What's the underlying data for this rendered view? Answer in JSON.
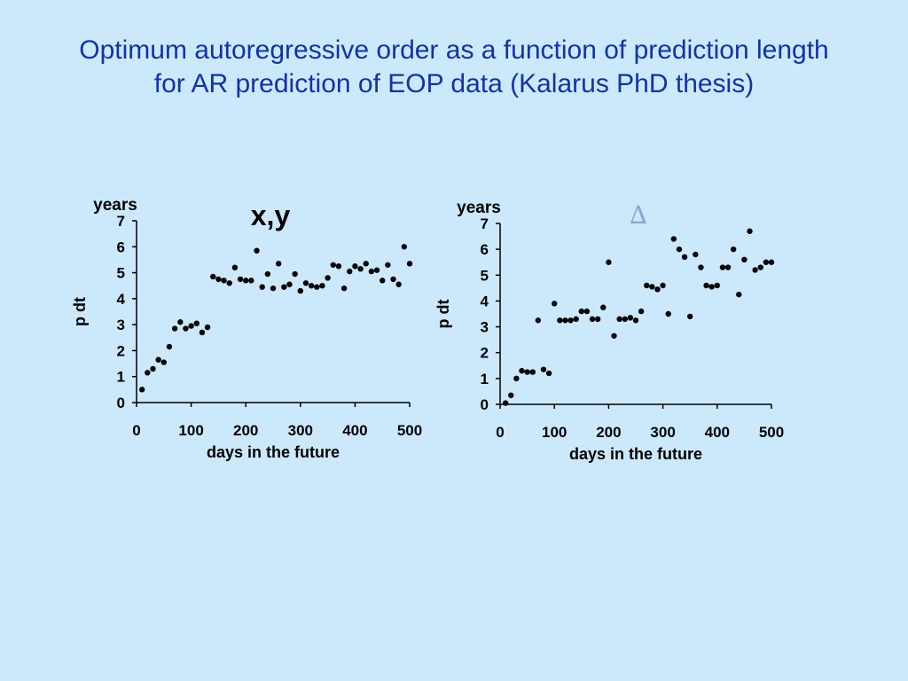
{
  "title": {
    "line1": "Optimum autoregressive order as a function of prediction length",
    "line2": "for AR prediction of EOP data (Kalarus PhD thesis)"
  },
  "chart_data": [
    {
      "type": "scatter",
      "panel_label": "x,y",
      "unit_label": "years",
      "xlabel": "days in the future",
      "ylabel": "p dt",
      "xlim": [
        0,
        500
      ],
      "ylim": [
        0,
        7
      ],
      "xticks": [
        0,
        100,
        200,
        300,
        400,
        500
      ],
      "yticks": [
        0,
        1,
        2,
        3,
        4,
        5,
        6,
        7
      ],
      "grid": false,
      "series": [
        {
          "x": [
            10,
            20,
            30,
            40,
            50,
            60,
            70,
            80,
            90,
            100,
            110,
            120,
            130,
            140,
            150,
            160,
            170,
            180,
            190,
            200,
            210,
            220,
            230,
            240,
            250,
            260,
            270,
            280,
            290,
            300,
            310,
            320,
            330,
            340,
            350,
            360,
            370,
            380,
            390,
            400,
            410,
            420,
            430,
            440,
            450,
            460,
            470,
            480,
            490,
            500
          ],
          "y": [
            0.5,
            1.15,
            1.3,
            1.65,
            1.55,
            2.15,
            2.85,
            3.1,
            2.85,
            2.95,
            3.05,
            2.7,
            2.9,
            4.85,
            4.75,
            4.7,
            4.6,
            5.2,
            4.75,
            4.7,
            4.7,
            5.85,
            4.45,
            4.95,
            4.4,
            5.35,
            4.45,
            4.55,
            4.95,
            4.3,
            4.6,
            4.5,
            4.45,
            4.5,
            4.8,
            5.3,
            5.25,
            4.4,
            5.05,
            5.25,
            5.15,
            5.35,
            5.05,
            5.1,
            4.7,
            5.3,
            4.75,
            4.55,
            6.0,
            5.35
          ]
        }
      ]
    },
    {
      "type": "scatter",
      "panel_label": "∆",
      "unit_label": "years",
      "xlabel": "days in the future",
      "ylabel": "p dt",
      "xlim": [
        0,
        500
      ],
      "ylim": [
        0,
        7
      ],
      "xticks": [
        0,
        100,
        200,
        300,
        400,
        500
      ],
      "yticks": [
        0,
        1,
        2,
        3,
        4,
        5,
        6,
        7
      ],
      "grid": false,
      "series": [
        {
          "x": [
            10,
            20,
            30,
            40,
            50,
            60,
            70,
            80,
            90,
            100,
            110,
            120,
            130,
            140,
            150,
            160,
            170,
            180,
            190,
            200,
            210,
            220,
            230,
            240,
            250,
            260,
            270,
            280,
            290,
            300,
            310,
            320,
            330,
            340,
            350,
            360,
            370,
            380,
            390,
            400,
            410,
            420,
            430,
            440,
            450,
            460,
            470,
            480,
            490,
            500
          ],
          "y": [
            0.05,
            0.35,
            1.0,
            1.3,
            1.25,
            1.25,
            3.25,
            1.35,
            1.2,
            3.9,
            3.25,
            3.25,
            3.25,
            3.3,
            3.6,
            3.6,
            3.3,
            3.3,
            3.75,
            5.5,
            2.65,
            3.3,
            3.3,
            3.35,
            3.25,
            3.6,
            4.6,
            4.55,
            4.45,
            4.6,
            3.5,
            6.4,
            6.0,
            5.7,
            3.4,
            5.8,
            5.3,
            4.6,
            4.55,
            4.6,
            5.3,
            5.3,
            6.0,
            4.25,
            5.6,
            6.7,
            5.2,
            5.3,
            5.5,
            5.5
          ]
        }
      ]
    }
  ]
}
